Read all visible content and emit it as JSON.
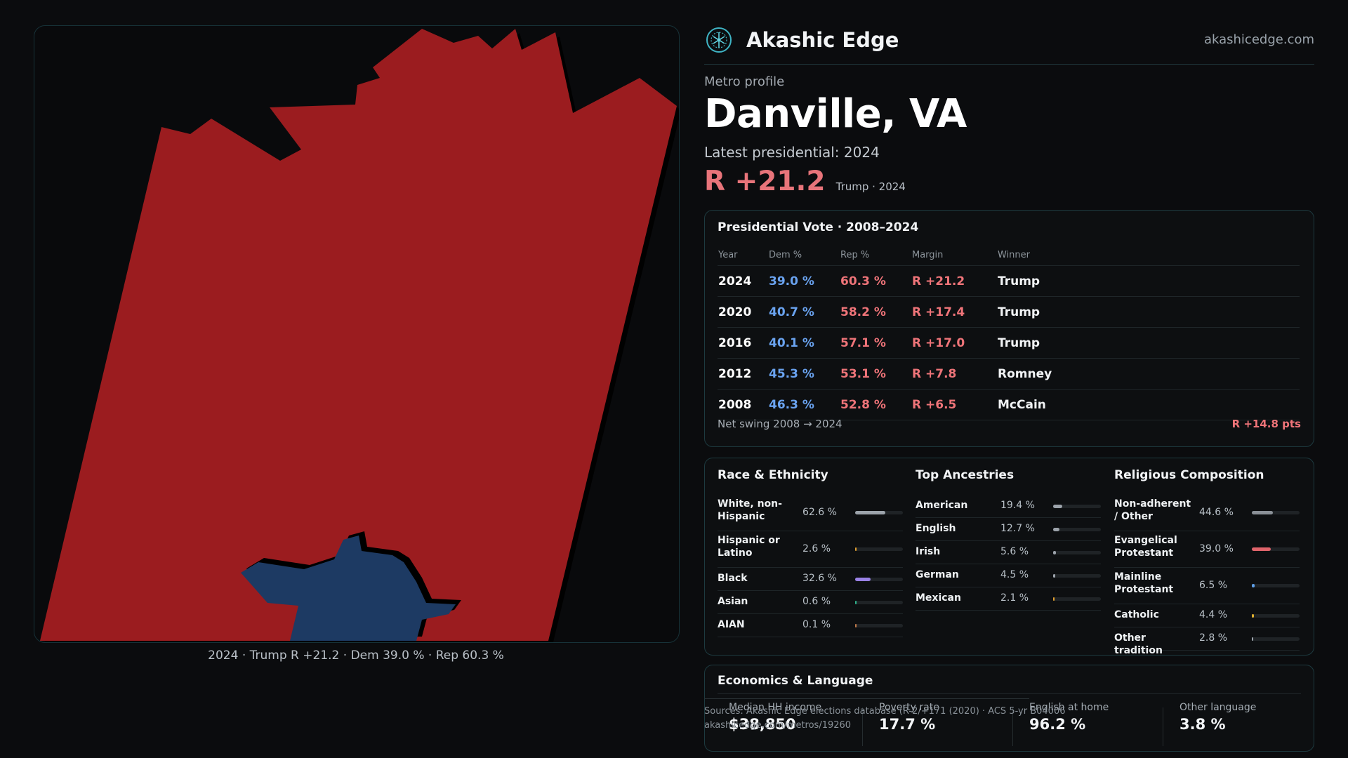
{
  "brand": {
    "name": "Akashic Edge",
    "domain": "akashicedge.com"
  },
  "header": {
    "eyebrow": "Metro profile",
    "title": "Danville, VA",
    "latest_label": "Latest presidential: 2024",
    "margin": "R +21.2",
    "margin_sub": "Trump · 2024"
  },
  "map": {
    "caption": "2024 · Trump R +21.2 · Dem 39.0 % · Rep 60.3 %",
    "colors": {
      "rep": "#9b1c1f",
      "dem": "#1d3a63",
      "shadow": "#000000"
    }
  },
  "presidential": {
    "title": "Presidential Vote · 2008–2024",
    "columns": [
      "Year",
      "Dem %",
      "Rep %",
      "Margin",
      "Winner"
    ],
    "rows": [
      {
        "year": "2024",
        "dem": "39.0 %",
        "rep": "60.3 %",
        "margin": "R +21.2",
        "winner": "Trump"
      },
      {
        "year": "2020",
        "dem": "40.7 %",
        "rep": "58.2 %",
        "margin": "R +17.4",
        "winner": "Trump"
      },
      {
        "year": "2016",
        "dem": "40.1 %",
        "rep": "57.1 %",
        "margin": "R +17.0",
        "winner": "Trump"
      },
      {
        "year": "2012",
        "dem": "45.3 %",
        "rep": "53.1 %",
        "margin": "R +7.8",
        "winner": "Romney"
      },
      {
        "year": "2008",
        "dem": "46.3 %",
        "rep": "52.8 %",
        "margin": "R +6.5",
        "winner": "McCain"
      }
    ],
    "swing_label": "Net swing 2008 → 2024",
    "swing_value": "R +14.8 pts"
  },
  "demographics": [
    {
      "title": "Race & Ethnicity",
      "items": [
        {
          "label": "White, non-Hispanic",
          "value": "62.6 %",
          "frac": 0.626,
          "color": "#9ca3ab"
        },
        {
          "label": "Hispanic or Latino",
          "value": "2.6 %",
          "frac": 0.026,
          "color": "#e0a030"
        },
        {
          "label": "Black",
          "value": "32.6 %",
          "frac": 0.326,
          "color": "#9a82e6"
        },
        {
          "label": "Asian",
          "value": "0.6 %",
          "frac": 0.006,
          "color": "#2fb58d"
        },
        {
          "label": "AIAN",
          "value": "0.1 %",
          "frac": 0.001,
          "color": "#c27a4a"
        }
      ]
    },
    {
      "title": "Top Ancestries",
      "items": [
        {
          "label": "American",
          "value": "19.4 %",
          "frac": 0.194,
          "color": "#9ca3ab"
        },
        {
          "label": "English",
          "value": "12.7 %",
          "frac": 0.127,
          "color": "#9ca3ab"
        },
        {
          "label": "Irish",
          "value": "5.6 %",
          "frac": 0.056,
          "color": "#9ca3ab"
        },
        {
          "label": "German",
          "value": "4.5 %",
          "frac": 0.045,
          "color": "#9ca3ab"
        },
        {
          "label": "Mexican",
          "value": "2.1 %",
          "frac": 0.021,
          "color": "#e0a030"
        }
      ]
    },
    {
      "title": "Religious Composition",
      "items": [
        {
          "label": "Non-adherent / Other",
          "value": "44.6 %",
          "frac": 0.446,
          "color": "#8a9097"
        },
        {
          "label": "Evangelical Protestant",
          "value": "39.0 %",
          "frac": 0.39,
          "color": "#e0646b"
        },
        {
          "label": "Mainline Protestant",
          "value": "6.5 %",
          "frac": 0.065,
          "color": "#5e9fe8"
        },
        {
          "label": "Catholic",
          "value": "4.4 %",
          "frac": 0.044,
          "color": "#e0b030"
        },
        {
          "label": "Other tradition",
          "value": "2.8 %",
          "frac": 0.028,
          "color": "#9ca3ab"
        }
      ]
    }
  ],
  "economics": {
    "title": "Economics & Language",
    "stats": [
      {
        "label": "Median HH income",
        "value": "$38,850"
      },
      {
        "label": "Poverty rate",
        "value": "17.7 %"
      },
      {
        "label": "English at home",
        "value": "96.2 %"
      },
      {
        "label": "Other language",
        "value": "3.8 %"
      }
    ]
  },
  "sources": {
    "line1": "Sources: Akashic Edge elections database (R-2/+171 (2020) · ACS 5-yr B04006",
    "line2": "akashicedge.com/metros/19260"
  }
}
